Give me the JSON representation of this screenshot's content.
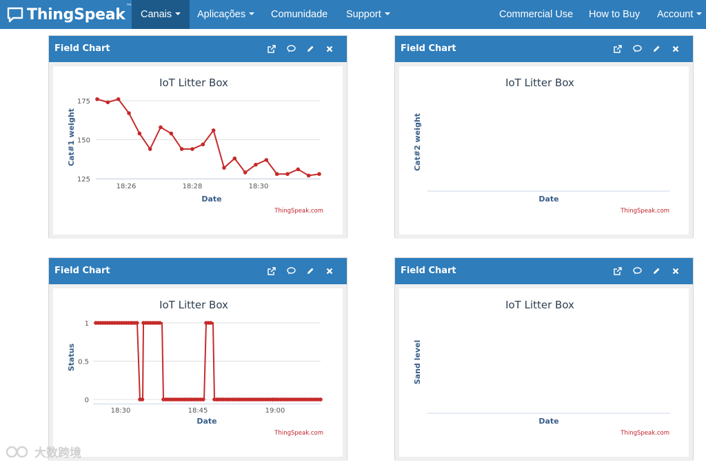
{
  "nav": {
    "brand": "ThingSpeak",
    "brand_tm": "™",
    "items": [
      {
        "label": "Canais"
      },
      {
        "label": "Aplicações"
      },
      {
        "label": "Comunidade"
      },
      {
        "label": "Support"
      },
      {
        "label": "Commercial Use"
      },
      {
        "label": "How to Buy"
      },
      {
        "label": "Account"
      }
    ]
  },
  "panels": [
    {
      "header": "Field Chart",
      "chart_title": "IoT Litter Box",
      "ylabel": "Cat#1 weight",
      "xlabel": "Date",
      "credit": "ThingSpeak.com"
    },
    {
      "header": "Field Chart",
      "chart_title": "IoT Litter Box",
      "ylabel": "Cat#2 weight",
      "xlabel": "Date",
      "credit": "ThingSpeak.com"
    },
    {
      "header": "Field Chart",
      "chart_title": "IoT Litter Box",
      "ylabel": "Status",
      "xlabel": "Date",
      "credit": "ThingSpeak.com"
    },
    {
      "header": "Field Chart",
      "chart_title": "IoT Litter Box",
      "ylabel": "Sand level",
      "xlabel": "Date",
      "credit": "ThingSpeak.com"
    }
  ],
  "watermark": "大数跨境",
  "colors": {
    "navbar": "#2f7dbb",
    "active_nav": "#1d5a8a",
    "series": "#c62a2a",
    "axis_title": "#385e88"
  },
  "chart_data": [
    {
      "type": "line",
      "title": "IoT Litter Box",
      "xlabel": "Date",
      "ylabel": "Cat#1 weight",
      "x_ticks": [
        "18:26",
        "18:28",
        "18:30"
      ],
      "y_ticks": [
        125,
        150,
        175
      ],
      "ylim": [
        125,
        175
      ],
      "grid": true,
      "series": [
        {
          "values": [
            176,
            174,
            176,
            167,
            154,
            144,
            158,
            154,
            144,
            144,
            147,
            156,
            132,
            138,
            129,
            134,
            137,
            128,
            128,
            131,
            127,
            128
          ]
        }
      ]
    },
    {
      "type": "line",
      "title": "IoT Litter Box",
      "xlabel": "Date",
      "ylabel": "Cat#2 weight",
      "series": []
    },
    {
      "type": "line",
      "title": "IoT Litter Box",
      "xlabel": "Date",
      "ylabel": "Status",
      "x_ticks": [
        "18:30",
        "18:45",
        "19:00"
      ],
      "y_ticks": [
        0,
        0.5,
        1
      ],
      "ylim": [
        0,
        1
      ],
      "grid": true,
      "series": [
        {
          "points": [
            [
              0,
              1
            ],
            [
              53,
              1
            ],
            [
              60,
              1
            ],
            [
              64,
              0
            ],
            [
              68,
              0
            ],
            [
              69,
              1
            ],
            [
              96,
              1
            ],
            [
              98,
              0
            ],
            [
              157,
              0
            ],
            [
              160,
              1
            ],
            [
              170,
              1
            ],
            [
              172,
              0
            ],
            [
              178,
              0
            ],
            [
              258,
              0
            ],
            [
              326,
              0
            ]
          ]
        }
      ]
    },
    {
      "type": "line",
      "title": "IoT Litter Box",
      "xlabel": "Date",
      "ylabel": "Sand level",
      "series": []
    }
  ]
}
